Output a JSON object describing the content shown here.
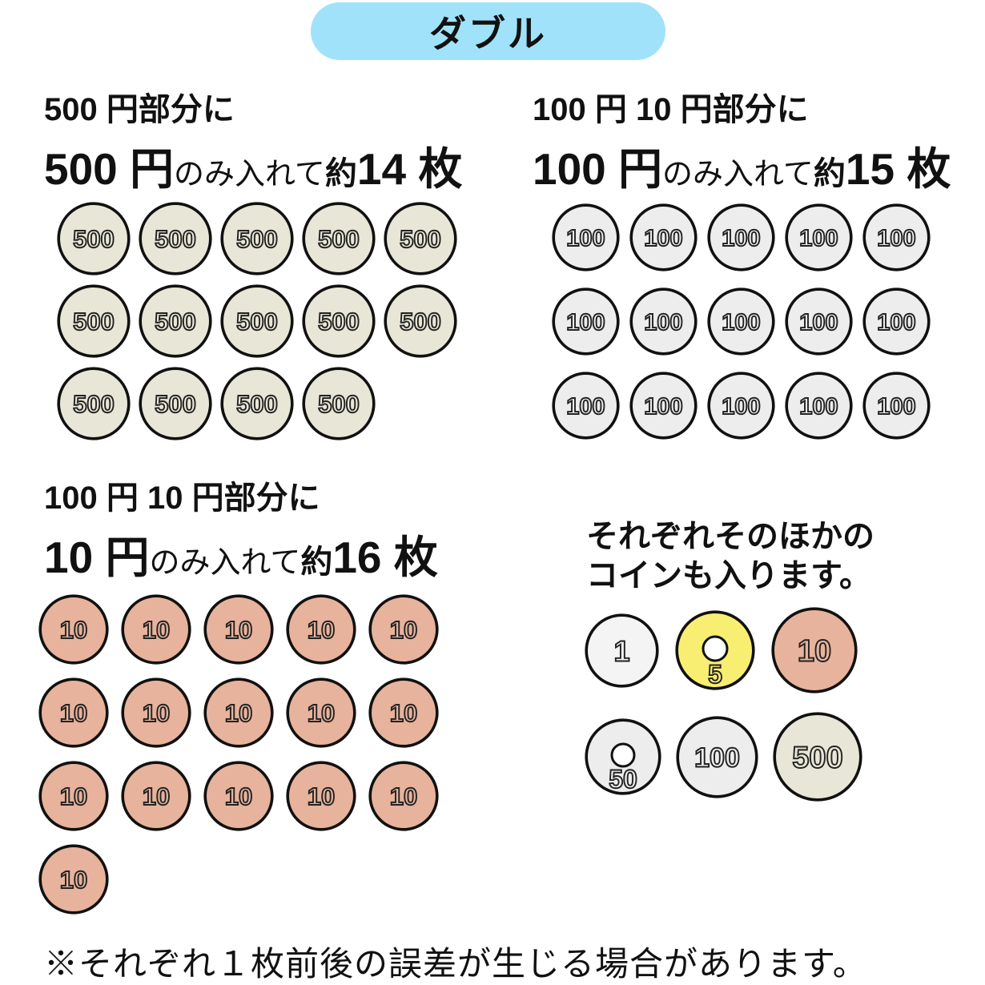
{
  "banner": {
    "label": "ダブル",
    "bg": "#a0e2fa"
  },
  "sections": [
    {
      "id": "s500",
      "title_line1": "500 円部分に",
      "big1": "500 円",
      "mid": "のみ入れて",
      "approx": "約",
      "big2": "14 枚",
      "coin": "c500_grid",
      "rows": [
        5,
        5,
        4
      ]
    },
    {
      "id": "s100",
      "title_line1": "100 円 10 円部分に",
      "big1": "100 円",
      "mid": "のみ入れて",
      "approx": "約",
      "big2": "15 枚",
      "coin": "c100_grid",
      "rows": [
        5,
        5,
        5
      ]
    },
    {
      "id": "s10",
      "title_line1": "100 円 10 円部分に",
      "big1": "10 円",
      "mid": "のみ入れて",
      "approx": "約",
      "big2": "16 枚",
      "coin": "c10_grid",
      "rows": [
        5,
        5,
        5,
        1
      ]
    }
  ],
  "others": {
    "title_line1": "それぞれそのほかの",
    "title_line2": "コインも入ります。",
    "rows": [
      [
        "c1_sample",
        "c5_sample",
        "c10_sample"
      ],
      [
        "c50_sample",
        "c100_sample",
        "c500_sample"
      ]
    ]
  },
  "coins": {
    "c500_grid": {
      "label": "500",
      "fill": "#e8e7d7",
      "size": 92,
      "font": 31
    },
    "c100_grid": {
      "label": "100",
      "fill": "#ededed",
      "size": 85,
      "font": 29
    },
    "c10_grid": {
      "label": "10",
      "fill": "#e7b39c",
      "size": 88,
      "font": 31
    },
    "c1_sample": {
      "label": "1",
      "fill": "#f4f4f4",
      "size": 93,
      "font": 36
    },
    "c5_sample": {
      "label": "5",
      "fill": "#f8ee72",
      "size": 100,
      "font": 32,
      "hole": 15
    },
    "c10_sample": {
      "label": "10",
      "fill": "#e7b39c",
      "size": 108,
      "font": 38
    },
    "c50_sample": {
      "label": "50",
      "fill": "#ededed",
      "size": 96,
      "font": 32,
      "hole": 14
    },
    "c100_sample": {
      "label": "100",
      "fill": "#ededed",
      "size": 103,
      "font": 34
    },
    "c500_sample": {
      "label": "500",
      "fill": "#e8e7d7",
      "size": 112,
      "font": 38
    }
  },
  "colors": {
    "banner_bg": "#a0e2fa",
    "outline": "#111111",
    "text_outline": "#222222"
  },
  "footnote": "※それぞれ１枚前後の誤差が生じる場合があります。"
}
